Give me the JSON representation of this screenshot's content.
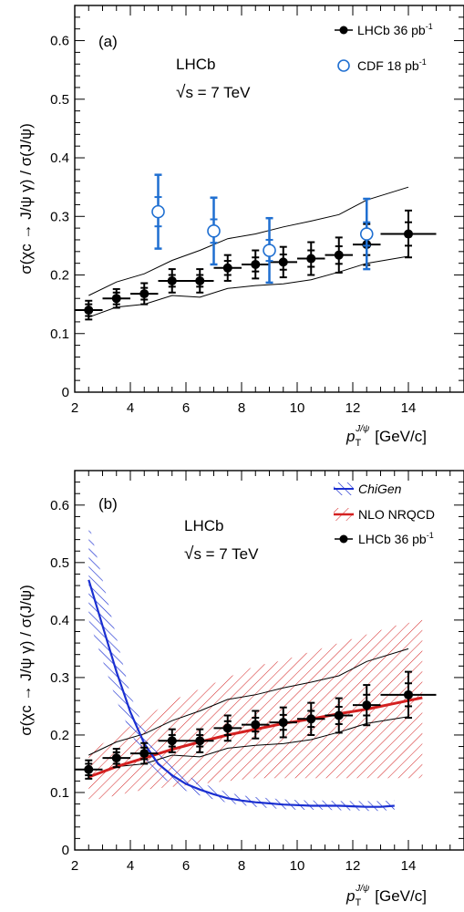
{
  "chart_data": [
    {
      "type": "scatter",
      "panel_label": "(a)",
      "experiment": "LHCb",
      "energy": "s = 7 TeV",
      "energy_prefix": "√",
      "xlabel": "[GeV/c]",
      "xlabel_var": "p",
      "xlabel_sub": "T",
      "xlabel_sup": "J/ψ",
      "ylabel": "σ(χc → J/ψ γ) / σ(J/ψ)",
      "xlim": [
        2,
        16
      ],
      "ylim": [
        0,
        0.66
      ],
      "xticks": [
        "2",
        "4",
        "6",
        "8",
        "10",
        "12",
        "14"
      ],
      "yticks": [
        "0",
        "0.1",
        "0.2",
        "0.3",
        "0.4",
        "0.5",
        "0.6"
      ],
      "legend_position": "top-right",
      "series": [
        {
          "name": "LHCb 36 pb",
          "name_sup": "-1",
          "color": "#000000",
          "marker": "filled-circle",
          "points": [
            {
              "x": 2.5,
              "xerr": 0.5,
              "y": 0.14,
              "stat": 0.01,
              "syst": 0.016
            },
            {
              "x": 3.5,
              "xerr": 0.5,
              "y": 0.16,
              "stat": 0.01,
              "syst": 0.016
            },
            {
              "x": 4.5,
              "xerr": 0.5,
              "y": 0.168,
              "stat": 0.01,
              "syst": 0.018
            },
            {
              "x": 5.5,
              "xerr": 0.5,
              "y": 0.19,
              "stat": 0.01,
              "syst": 0.02
            },
            {
              "x": 6.5,
              "xerr": 0.5,
              "y": 0.19,
              "stat": 0.01,
              "syst": 0.02
            },
            {
              "x": 7.5,
              "xerr": 0.5,
              "y": 0.212,
              "stat": 0.012,
              "syst": 0.022
            },
            {
              "x": 8.5,
              "xerr": 0.5,
              "y": 0.218,
              "stat": 0.012,
              "syst": 0.024
            },
            {
              "x": 9.5,
              "xerr": 0.5,
              "y": 0.222,
              "stat": 0.013,
              "syst": 0.026
            },
            {
              "x": 10.5,
              "xerr": 0.5,
              "y": 0.228,
              "stat": 0.014,
              "syst": 0.028
            },
            {
              "x": 11.5,
              "xerr": 0.5,
              "y": 0.234,
              "stat": 0.015,
              "syst": 0.03
            },
            {
              "x": 12.5,
              "xerr": 0.5,
              "y": 0.252,
              "stat": 0.018,
              "syst": 0.035
            },
            {
              "x": 14.0,
              "xerr": 1.0,
              "y": 0.27,
              "stat": 0.02,
              "syst": 0.04
            }
          ]
        },
        {
          "name": "CDF 18 pb",
          "name_sup": "-1",
          "color": "#1f6fd1",
          "marker": "open-circle",
          "points": [
            {
              "x": 5.0,
              "y": 0.308,
              "stat": 0.025,
              "syst": 0.063
            },
            {
              "x": 7.0,
              "y": 0.275,
              "stat": 0.02,
              "syst": 0.057
            },
            {
              "x": 9.0,
              "y": 0.242,
              "stat": 0.018,
              "syst": 0.055
            },
            {
              "x": 12.5,
              "y": 0.27,
              "stat": 0.02,
              "syst": 0.06
            }
          ]
        }
      ],
      "polarization_envelope": {
        "color": "#000000",
        "x": [
          2.5,
          3.5,
          4.5,
          5.5,
          6.5,
          7.5,
          8.5,
          9.5,
          10.5,
          11.5,
          12.5,
          14.0
        ],
        "upper": [
          0.165,
          0.188,
          0.202,
          0.225,
          0.242,
          0.262,
          0.27,
          0.282,
          0.292,
          0.303,
          0.328,
          0.35
        ],
        "lower": [
          0.128,
          0.145,
          0.15,
          0.165,
          0.162,
          0.177,
          0.182,
          0.185,
          0.192,
          0.205,
          0.22,
          0.232
        ]
      }
    },
    {
      "type": "line",
      "panel_label": "(b)",
      "experiment": "LHCb",
      "energy": "s = 7 TeV",
      "energy_prefix": "√",
      "xlabel": "[GeV/c]",
      "xlabel_var": "p",
      "xlabel_sub": "T",
      "xlabel_sup": "J/ψ",
      "ylabel": "σ(χc → J/ψ γ) / σ(J/ψ)",
      "xlim": [
        2,
        16
      ],
      "ylim": [
        0,
        0.66
      ],
      "xticks": [
        "2",
        "4",
        "6",
        "8",
        "10",
        "12",
        "14"
      ],
      "yticks": [
        "0",
        "0.1",
        "0.2",
        "0.3",
        "0.4",
        "0.5",
        "0.6"
      ],
      "legend_position": "top-right",
      "series": [
        {
          "name": "ChiGen",
          "color": "#1a2fd1",
          "style": "line-with-hatched-band",
          "x": [
            2.5,
            3.0,
            3.5,
            4.0,
            4.5,
            5.0,
            5.5,
            6.0,
            6.5,
            7.0,
            7.5,
            8.0,
            8.5,
            9.0,
            9.5,
            10.0,
            10.5,
            11.0,
            11.5,
            12.0,
            12.5,
            13.0,
            13.5
          ],
          "y": [
            0.47,
            0.39,
            0.31,
            0.24,
            0.185,
            0.15,
            0.13,
            0.115,
            0.105,
            0.097,
            0.09,
            0.086,
            0.083,
            0.081,
            0.079,
            0.078,
            0.077,
            0.077,
            0.077,
            0.076,
            0.075,
            0.075,
            0.077
          ],
          "band_upper": [
            0.57,
            0.47,
            0.37,
            0.27,
            0.21,
            0.17,
            0.148,
            0.13,
            0.118,
            0.108,
            0.1,
            0.095,
            0.092,
            0.09,
            0.088,
            0.087,
            0.086,
            0.086,
            0.085,
            0.085,
            0.085,
            0.085,
            0.086
          ],
          "band_lower": [
            0.4,
            0.33,
            0.26,
            0.205,
            0.16,
            0.13,
            0.115,
            0.103,
            0.095,
            0.088,
            0.082,
            0.078,
            0.075,
            0.073,
            0.071,
            0.07,
            0.07,
            0.07,
            0.069,
            0.069,
            0.068,
            0.068,
            0.07
          ]
        },
        {
          "name": "NLO NRQCD",
          "color": "#d42020",
          "style": "line-with-hatched-band",
          "x": [
            2.5,
            3.5,
            4.5,
            5.5,
            6.5,
            7.5,
            8.5,
            9.5,
            10.5,
            11.5,
            12.5,
            13.5,
            14.5
          ],
          "y": [
            0.127,
            0.145,
            0.16,
            0.175,
            0.188,
            0.2,
            0.21,
            0.22,
            0.228,
            0.237,
            0.245,
            0.255,
            0.265
          ],
          "band_upper": [
            0.17,
            0.2,
            0.23,
            0.26,
            0.28,
            0.3,
            0.32,
            0.33,
            0.345,
            0.36,
            0.375,
            0.39,
            0.4
          ],
          "band_lower": [
            0.085,
            0.095,
            0.105,
            0.11,
            0.115,
            0.12,
            0.125,
            0.125,
            0.125,
            0.125,
            0.125,
            0.125,
            0.125
          ]
        },
        {
          "name": "LHCb 36 pb",
          "name_sup": "-1",
          "color": "#000000",
          "marker": "filled-circle",
          "points": [
            {
              "x": 2.5,
              "xerr": 0.5,
              "y": 0.14,
              "stat": 0.01,
              "syst": 0.016
            },
            {
              "x": 3.5,
              "xerr": 0.5,
              "y": 0.16,
              "stat": 0.01,
              "syst": 0.016
            },
            {
              "x": 4.5,
              "xerr": 0.5,
              "y": 0.168,
              "stat": 0.01,
              "syst": 0.018
            },
            {
              "x": 5.5,
              "xerr": 0.5,
              "y": 0.19,
              "stat": 0.01,
              "syst": 0.02
            },
            {
              "x": 6.5,
              "xerr": 0.5,
              "y": 0.19,
              "stat": 0.01,
              "syst": 0.02
            },
            {
              "x": 7.5,
              "xerr": 0.5,
              "y": 0.212,
              "stat": 0.012,
              "syst": 0.022
            },
            {
              "x": 8.5,
              "xerr": 0.5,
              "y": 0.218,
              "stat": 0.012,
              "syst": 0.024
            },
            {
              "x": 9.5,
              "xerr": 0.5,
              "y": 0.222,
              "stat": 0.013,
              "syst": 0.026
            },
            {
              "x": 10.5,
              "xerr": 0.5,
              "y": 0.228,
              "stat": 0.014,
              "syst": 0.028
            },
            {
              "x": 11.5,
              "xerr": 0.5,
              "y": 0.234,
              "stat": 0.015,
              "syst": 0.03
            },
            {
              "x": 12.5,
              "xerr": 0.5,
              "y": 0.252,
              "stat": 0.018,
              "syst": 0.035
            },
            {
              "x": 14.0,
              "xerr": 1.0,
              "y": 0.27,
              "stat": 0.02,
              "syst": 0.04
            }
          ]
        }
      ],
      "polarization_envelope": {
        "color": "#000000",
        "x": [
          2.5,
          3.5,
          4.5,
          5.5,
          6.5,
          7.5,
          8.5,
          9.5,
          10.5,
          11.5,
          12.5,
          14.0
        ],
        "upper": [
          0.165,
          0.188,
          0.202,
          0.225,
          0.242,
          0.262,
          0.27,
          0.282,
          0.292,
          0.303,
          0.328,
          0.35
        ],
        "lower": [
          0.128,
          0.145,
          0.15,
          0.165,
          0.162,
          0.177,
          0.182,
          0.185,
          0.192,
          0.205,
          0.22,
          0.232
        ]
      }
    }
  ]
}
